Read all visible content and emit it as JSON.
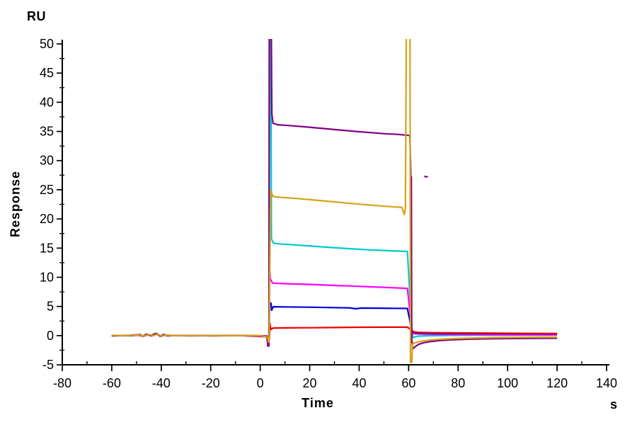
{
  "chart_data": {
    "type": "line",
    "title": "",
    "xlabel": "Time",
    "ylabel": "Response",
    "x_unit": "s",
    "y_unit": "RU",
    "xlim": [
      -80,
      140
    ],
    "ylim": [
      -5,
      50
    ],
    "x_ticks": [
      -80,
      -60,
      -40,
      -20,
      0,
      20,
      40,
      60,
      80,
      100,
      120,
      140
    ],
    "x_minor_step": 10,
    "y_ticks": [
      50,
      45,
      40,
      35,
      30,
      25,
      20,
      15,
      10,
      5,
      0,
      -5
    ],
    "y_minor_step": 2.5,
    "grid": false,
    "legend": "none",
    "axis_color": "#000000",
    "background": "#ffffff",
    "description": "SPR sensorgram: baseline -60 to 0 s, association ~4 to 59 s with injection spikes, dissociation 62 to 120 s",
    "series": [
      {
        "name": "cyan",
        "color": "#00CBCB",
        "plateau_ru": 15.7,
        "points": [
          [
            -60,
            0.02
          ],
          [
            -52,
            -0.03
          ],
          [
            -48.8,
            0.15
          ],
          [
            -47.2,
            -0.08
          ],
          [
            -45.5,
            0.2
          ],
          [
            -44,
            0
          ],
          [
            -41.8,
            0.32
          ],
          [
            -40.2,
            -0.1
          ],
          [
            -38.5,
            0.12
          ],
          [
            -36,
            0
          ],
          [
            -26,
            -0.02
          ],
          [
            -16,
            0.02
          ],
          [
            -6,
            0
          ],
          [
            2.8,
            -0.15
          ],
          [
            3.1,
            -1.5
          ],
          [
            3.5,
            -1.45
          ],
          [
            3.85,
            51
          ],
          [
            4.35,
            51
          ],
          [
            4.55,
            16.6
          ],
          [
            5.3,
            15.85
          ],
          [
            8,
            15.72
          ],
          [
            15,
            15.52
          ],
          [
            25,
            15.22
          ],
          [
            35,
            14.92
          ],
          [
            45,
            14.68
          ],
          [
            55,
            14.5
          ],
          [
            59.5,
            14.42
          ],
          [
            61.35,
            0.35
          ],
          [
            61.8,
            -0.35
          ],
          [
            62.6,
            -0.18
          ],
          [
            64,
            -0.08
          ],
          [
            68,
            -0.02
          ],
          [
            75,
            0.03
          ],
          [
            90,
            0.06
          ],
          [
            105,
            0.08
          ],
          [
            120,
            0.1
          ]
        ]
      },
      {
        "name": "magenta",
        "color": "#FF00FF",
        "plateau_ru": 8.9,
        "points": [
          [
            -60,
            0
          ],
          [
            -53,
            0.03
          ],
          [
            -49.2,
            0.17
          ],
          [
            -47.4,
            -0.07
          ],
          [
            -45.8,
            0.22
          ],
          [
            -44.2,
            0.02
          ],
          [
            -41.9,
            0.35
          ],
          [
            -40.3,
            -0.08
          ],
          [
            -38.8,
            0.14
          ],
          [
            -36.5,
            0
          ],
          [
            -27,
            0.02
          ],
          [
            -17,
            -0.02
          ],
          [
            -7,
            0
          ],
          [
            2.7,
            -0.2
          ],
          [
            3.05,
            -1.82
          ],
          [
            3.5,
            -1.78
          ],
          [
            3.7,
            11.6
          ],
          [
            4.1,
            9.7
          ],
          [
            5,
            9.0
          ],
          [
            10,
            8.9
          ],
          [
            20,
            8.78
          ],
          [
            30,
            8.6
          ],
          [
            40,
            8.45
          ],
          [
            50,
            8.27
          ],
          [
            59.5,
            8.1
          ],
          [
            61.3,
            0.95
          ],
          [
            61.8,
            0.35
          ],
          [
            63,
            0.3
          ],
          [
            66,
            0.26
          ],
          [
            72,
            0.22
          ],
          [
            85,
            0.18
          ],
          [
            100,
            0.15
          ],
          [
            120,
            0.13
          ]
        ]
      },
      {
        "name": "blue",
        "color": "#0000DD",
        "plateau_ru": 4.9,
        "points": [
          [
            -60,
            0.03
          ],
          [
            -52.5,
            0
          ],
          [
            -49,
            0.1
          ],
          [
            -47.1,
            -0.1
          ],
          [
            -45.2,
            0.15
          ],
          [
            -43.8,
            -0.02
          ],
          [
            -41.6,
            0.28
          ],
          [
            -40.1,
            -0.12
          ],
          [
            -38.2,
            0.1
          ],
          [
            -36.2,
            0
          ],
          [
            -28,
            -0.02
          ],
          [
            -18,
            0.02
          ],
          [
            -8,
            0
          ],
          [
            2.9,
            -0.12
          ],
          [
            3.2,
            -0.95
          ],
          [
            3.6,
            -0.9
          ],
          [
            3.8,
            5.65
          ],
          [
            4.4,
            5.55
          ],
          [
            4.6,
            4.35
          ],
          [
            5.3,
            4.95
          ],
          [
            10,
            4.92
          ],
          [
            20,
            4.87
          ],
          [
            30,
            4.8
          ],
          [
            36,
            4.76
          ],
          [
            38.5,
            4.6
          ],
          [
            41,
            4.73
          ],
          [
            48,
            4.7
          ],
          [
            54,
            4.68
          ],
          [
            59.5,
            4.65
          ],
          [
            61.35,
            0.78
          ],
          [
            62.2,
            0.5
          ],
          [
            64,
            0.45
          ],
          [
            70,
            0.4
          ],
          [
            80,
            0.38
          ],
          [
            95,
            0.35
          ],
          [
            110,
            0.32
          ],
          [
            120,
            0.3
          ]
        ]
      },
      {
        "name": "red",
        "color": "#EE0000",
        "plateau_ru": 1.4,
        "points": [
          [
            -60,
            -0.02
          ],
          [
            -53.5,
            0.02
          ],
          [
            -49.5,
            0.08
          ],
          [
            -47.3,
            -0.08
          ],
          [
            -45.4,
            0.12
          ],
          [
            -43.9,
            0
          ],
          [
            -41.7,
            0.25
          ],
          [
            -40.2,
            -0.1
          ],
          [
            -38.4,
            0.08
          ],
          [
            -36.4,
            0
          ],
          [
            -29,
            0.02
          ],
          [
            -19,
            -0.02
          ],
          [
            -9,
            0
          ],
          [
            2.9,
            -0.1
          ],
          [
            3.2,
            -0.55
          ],
          [
            3.7,
            -0.5
          ],
          [
            3.9,
            2.05
          ],
          [
            4.3,
            1.05
          ],
          [
            5.2,
            1.3
          ],
          [
            10,
            1.32
          ],
          [
            20,
            1.35
          ],
          [
            30,
            1.39
          ],
          [
            40,
            1.43
          ],
          [
            50,
            1.45
          ],
          [
            59.5,
            1.46
          ],
          [
            61.3,
            0.88
          ],
          [
            62.2,
            0.65
          ],
          [
            64,
            0.56
          ],
          [
            70,
            0.5
          ],
          [
            80,
            0.46
          ],
          [
            95,
            0.42
          ],
          [
            110,
            0.38
          ],
          [
            120,
            0.36
          ]
        ]
      },
      {
        "name": "purple",
        "color": "#800080",
        "plateau_ru": 36.0,
        "points": [
          [
            -60,
            -0.05
          ],
          [
            -54,
            0.03
          ],
          [
            -50,
            0.05
          ],
          [
            -48.5,
            0.2
          ],
          [
            -47.5,
            -0.1
          ],
          [
            -46,
            0.25
          ],
          [
            -44.5,
            0
          ],
          [
            -42,
            0.4
          ],
          [
            -40.5,
            -0.1
          ],
          [
            -39,
            0.2
          ],
          [
            -37.5,
            -0.05
          ],
          [
            -34,
            0.02
          ],
          [
            -28,
            0
          ],
          [
            -20,
            -0.02
          ],
          [
            -10,
            0.02
          ],
          [
            0,
            0
          ],
          [
            2.6,
            -0.08
          ],
          [
            3,
            -1.0
          ],
          [
            3.2,
            -1.78
          ],
          [
            3.55,
            -1.72
          ],
          [
            3.65,
            51
          ],
          [
            4.5,
            51
          ],
          [
            4.7,
            38
          ],
          [
            5.2,
            36.4
          ],
          [
            7,
            36.15
          ],
          [
            12,
            36
          ],
          [
            20,
            35.72
          ],
          [
            30,
            35.32
          ],
          [
            40,
            34.95
          ],
          [
            50,
            34.62
          ],
          [
            56,
            34.48
          ],
          [
            60.5,
            34.3
          ],
          [
            60.9,
            27.3
          ],
          [
            61.1,
            27.2
          ],
          [
            61.25,
            -0.6
          ],
          [
            61.7,
            -2.25
          ],
          [
            62.6,
            -1.9
          ],
          [
            64,
            -1.5
          ],
          [
            66,
            -1.22
          ],
          [
            69,
            -1.0
          ],
          [
            73,
            -0.83
          ],
          [
            78,
            -0.7
          ],
          [
            85,
            -0.6
          ],
          [
            95,
            -0.53
          ],
          [
            108,
            -0.48
          ],
          [
            120,
            -0.45
          ]
        ]
      },
      {
        "name": "purple-artifact",
        "color": "#800080",
        "plateau_ru": null,
        "points": [
          [
            66.3,
            27.3
          ],
          [
            67.8,
            27.2
          ]
        ]
      },
      {
        "name": "gold",
        "color": "#D5A317",
        "plateau_ru": 23.5,
        "points": [
          [
            -60,
            0.05
          ],
          [
            -53,
            0
          ],
          [
            -49,
            0.12
          ],
          [
            -47,
            -0.06
          ],
          [
            -45,
            0.18
          ],
          [
            -43,
            0.02
          ],
          [
            -41.5,
            0.3
          ],
          [
            -40,
            -0.08
          ],
          [
            -38,
            0.1
          ],
          [
            -35,
            0
          ],
          [
            -25,
            0.02
          ],
          [
            -15,
            0
          ],
          [
            -5,
            0.02
          ],
          [
            0,
            0
          ],
          [
            3,
            -0.25
          ],
          [
            3.3,
            -1.1
          ],
          [
            3.6,
            -1.1
          ],
          [
            4.2,
            24.9
          ],
          [
            5.2,
            23.85
          ],
          [
            8,
            23.72
          ],
          [
            15,
            23.5
          ],
          [
            25,
            23.12
          ],
          [
            35,
            22.72
          ],
          [
            45,
            22.35
          ],
          [
            53,
            22.1
          ],
          [
            57.3,
            21.98
          ],
          [
            58.2,
            20.75
          ],
          [
            58.7,
            21.9
          ],
          [
            59.05,
            51
          ],
          [
            60.55,
            51
          ],
          [
            60.75,
            -4.6
          ],
          [
            61.3,
            -4.55
          ],
          [
            61.55,
            -1.45
          ],
          [
            62.5,
            -1.25
          ],
          [
            64,
            -1.05
          ],
          [
            66,
            -0.9
          ],
          [
            69,
            -0.75
          ],
          [
            73,
            -0.62
          ],
          [
            79,
            -0.5
          ],
          [
            87,
            -0.4
          ],
          [
            97,
            -0.33
          ],
          [
            110,
            -0.29
          ],
          [
            120,
            -0.27
          ]
        ]
      }
    ]
  }
}
